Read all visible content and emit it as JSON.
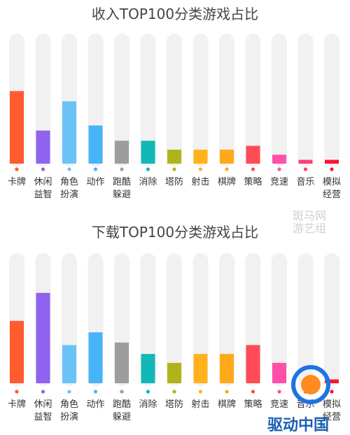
{
  "chart_data": [
    {
      "type": "bar",
      "title": "收入TOP100分类游戏占比",
      "categories": [
        [
          "卡牌"
        ],
        [
          "休闲",
          "益智"
        ],
        [
          "角色",
          "扮演"
        ],
        [
          "动作"
        ],
        [
          "跑酷",
          "躲避"
        ],
        [
          "消除"
        ],
        [
          "塔防"
        ],
        [
          "射击"
        ],
        [
          "棋牌"
        ],
        [
          "策略"
        ],
        [
          "竞速"
        ],
        [
          "音乐"
        ],
        [
          "模拟",
          "经营"
        ]
      ],
      "values": [
        57,
        26,
        49,
        30,
        18,
        18,
        11,
        11,
        11,
        14,
        7,
        3,
        3
      ],
      "ylim": [
        0,
        100
      ],
      "colors": [
        "#ff5b2e",
        "#8f62f0",
        "#6ac3f7",
        "#47b4f7",
        "#9d9d9f",
        "#11b8b5",
        "#b0b41c",
        "#ffb21c",
        "#ffa91a",
        "#ff4b55",
        "#ff4fa8",
        "#ff3f73",
        "#ff1030"
      ]
    },
    {
      "type": "bar",
      "title": "下载TOP100分类游戏占比",
      "categories": [
        [
          "卡牌"
        ],
        [
          "休闲",
          "益智"
        ],
        [
          "角色",
          "扮演"
        ],
        [
          "动作"
        ],
        [
          "跑酷",
          "躲避"
        ],
        [
          "消除"
        ],
        [
          "塔防"
        ],
        [
          "射击"
        ],
        [
          "棋牌"
        ],
        [
          "策略"
        ],
        [
          "竞速"
        ],
        [
          "音乐"
        ],
        [
          "模拟",
          "经营"
        ]
      ],
      "values": [
        49,
        71,
        30,
        40,
        32,
        23,
        16,
        23,
        23,
        30,
        16,
        0,
        3
      ],
      "ylim": [
        0,
        100
      ],
      "colors": [
        "#ff5b2e",
        "#8f62f0",
        "#6ac3f7",
        "#47b4f7",
        "#9d9d9f",
        "#11b8b5",
        "#b0b41c",
        "#ffb21c",
        "#ffa91a",
        "#ff4b55",
        "#ff4fa8",
        "#ff3f73",
        "#ff1030"
      ]
    }
  ],
  "watermark": {
    "text_lines": [
      "斑马网",
      "游艺组"
    ],
    "logo_text": "驱动中国"
  }
}
